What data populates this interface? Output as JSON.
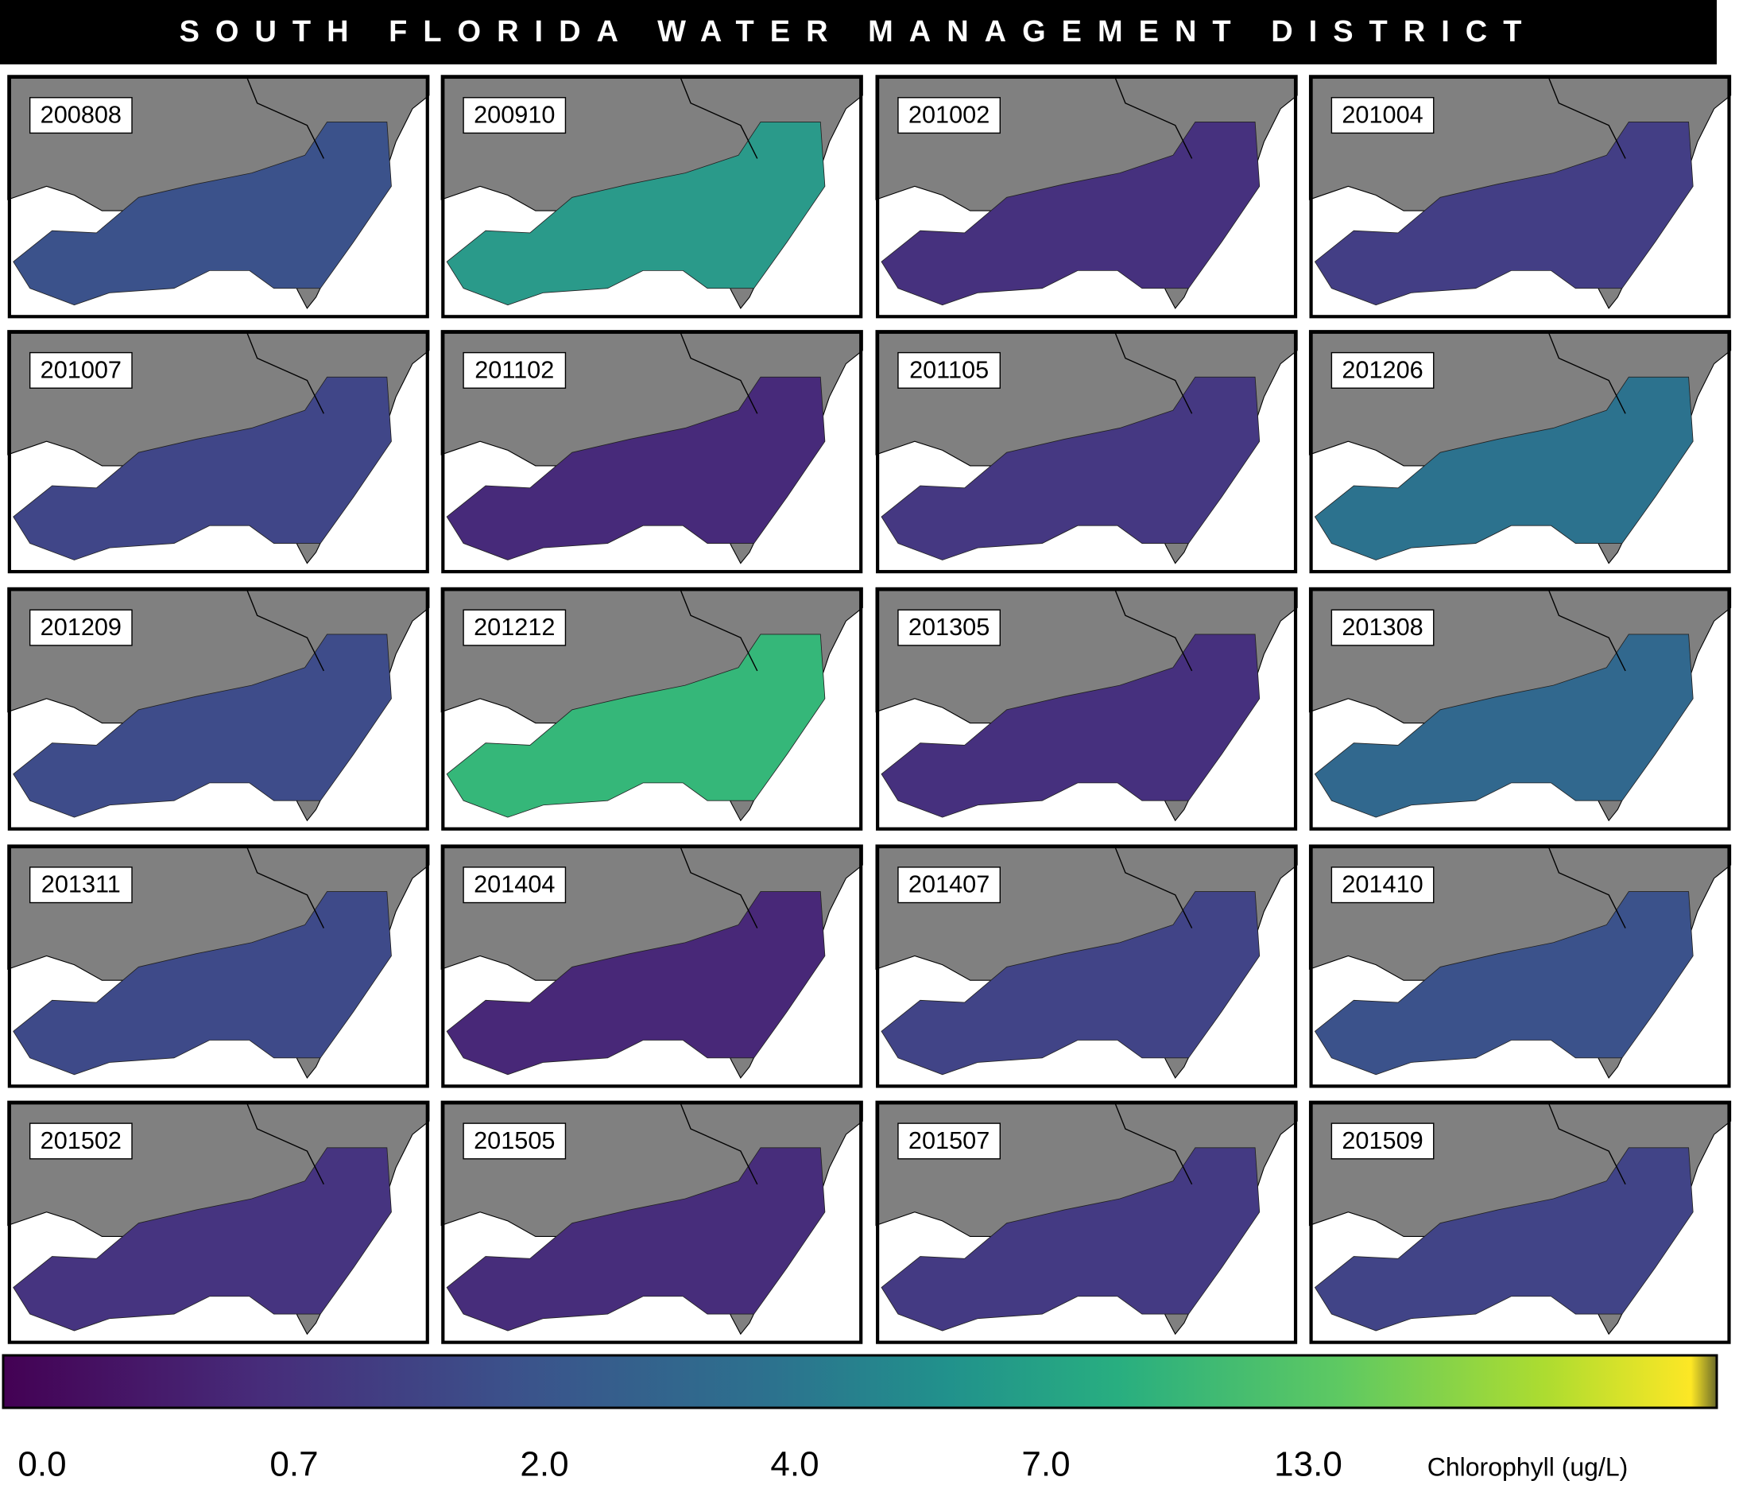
{
  "header": {
    "title": "SOUTH FLORIDA WATER MANAGEMENT DISTRICT"
  },
  "panels": [
    {
      "label": "200808",
      "color": "#3b528b"
    },
    {
      "label": "200910",
      "color": "#2a9a8a"
    },
    {
      "label": "201002",
      "color": "#46317e"
    },
    {
      "label": "201004",
      "color": "#433e85"
    },
    {
      "label": "201007",
      "color": "#404688"
    },
    {
      "label": "201102",
      "color": "#472a7a"
    },
    {
      "label": "201105",
      "color": "#453882"
    },
    {
      "label": "201206",
      "color": "#2c728e"
    },
    {
      "label": "201209",
      "color": "#3e4c8a"
    },
    {
      "label": "201212",
      "color": "#35b779"
    },
    {
      "label": "201305",
      "color": "#46307e"
    },
    {
      "label": "201308",
      "color": "#31688e"
    },
    {
      "label": "201311",
      "color": "#3e4a89"
    },
    {
      "label": "201404",
      "color": "#482878"
    },
    {
      "label": "201407",
      "color": "#414487"
    },
    {
      "label": "201410",
      "color": "#3b528b"
    },
    {
      "label": "201502",
      "color": "#463480"
    },
    {
      "label": "201505",
      "color": "#472d7b"
    },
    {
      "label": "201507",
      "color": "#443a83"
    },
    {
      "label": "201509",
      "color": "#414487"
    }
  ],
  "colorbar": {
    "tick_labels": [
      "0.0",
      "0.7",
      "2.0",
      "4.0",
      "7.0",
      "13.0"
    ],
    "label": "Chlorophyll  (ug/L)"
  }
}
